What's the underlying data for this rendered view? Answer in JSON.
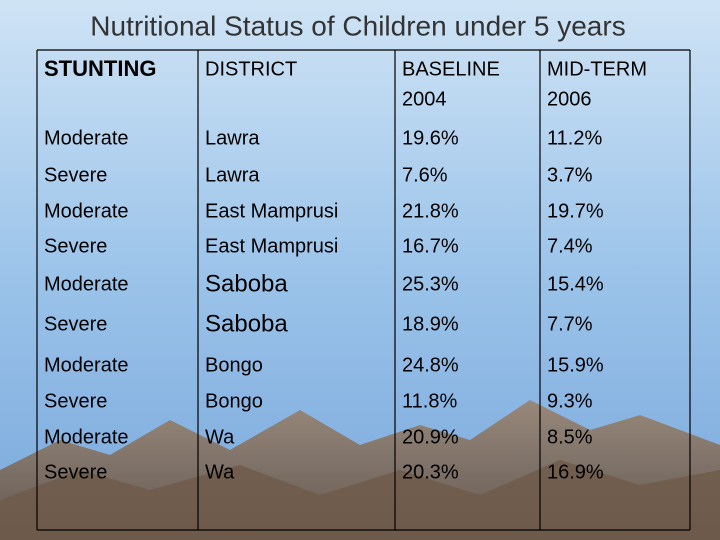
{
  "title": "Nutritional Status of Children under 5 years",
  "table": {
    "header": [
      [
        "STUNTING"
      ],
      [
        "DISTRICT"
      ],
      [
        "BASELINE",
        "2004"
      ],
      [
        "MID-TERM",
        "2006"
      ]
    ],
    "rows": [
      [
        "Moderate",
        "Lawra",
        "19.6%",
        "11.2%"
      ],
      [
        "Severe",
        "Lawra",
        "7.6%",
        "3.7%"
      ],
      [
        "Moderate",
        "East Mamprusi",
        "21.8%",
        "19.7%"
      ],
      [
        "Severe",
        "East Mamprusi",
        "16.7%",
        "7.4%"
      ],
      [
        "Moderate",
        "Saboba",
        "25.3%",
        "15.4%"
      ],
      [
        "Severe",
        "Saboba",
        "18.9%",
        "7.7%"
      ],
      [
        "Moderate",
        "Bongo",
        "24.8%",
        "15.9%"
      ],
      [
        "Severe",
        "Bongo",
        "11.8%",
        "9.3%"
      ],
      [
        "Moderate",
        "Wa",
        "20.9%",
        "8.5%"
      ],
      [
        "Severe",
        "Wa",
        "20.3%",
        "16.9%"
      ]
    ]
  }
}
